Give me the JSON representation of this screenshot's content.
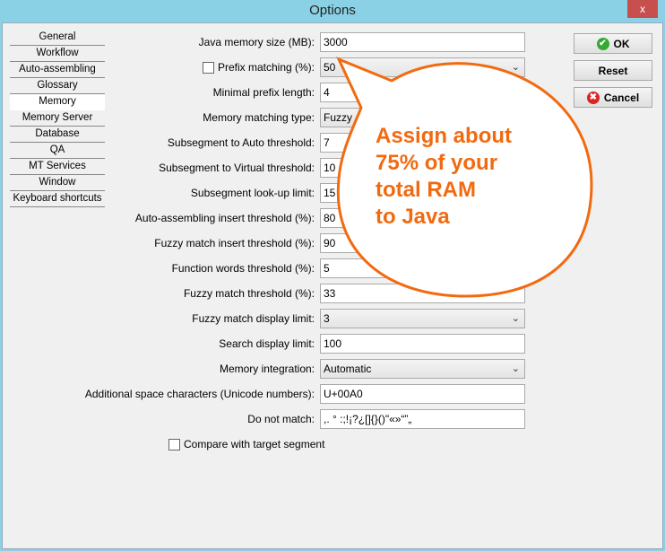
{
  "window": {
    "title": "Options",
    "close": "x"
  },
  "nav": [
    "General",
    "Workflow",
    "Auto-assembling",
    "Glossary",
    "Memory",
    "Memory Server",
    "Database",
    "QA",
    "MT Services",
    "Window",
    "Keyboard shortcuts"
  ],
  "nav_selected": "Memory",
  "fields": [
    {
      "label": "Java memory size (MB):",
      "value": "3000",
      "type": "text"
    },
    {
      "label": "Prefix matching (%):",
      "value": "50",
      "type": "dropdown",
      "checkbox": true,
      "checked": false
    },
    {
      "label": "Minimal prefix length:",
      "value": "4",
      "type": "text"
    },
    {
      "label": "Memory matching type:",
      "value": "Fuzzy &",
      "type": "dropdown"
    },
    {
      "label": "Subsegment to Auto threshold:",
      "value": "7",
      "type": "text"
    },
    {
      "label": "Subsegment to Virtual threshold:",
      "value": "10",
      "type": "text"
    },
    {
      "label": "Subsegment look-up limit:",
      "value": "15",
      "type": "text"
    },
    {
      "label": "Auto-assembling insert threshold (%):",
      "value": "80",
      "type": "text"
    },
    {
      "label": "Fuzzy match insert threshold (%):",
      "value": "90",
      "type": "text"
    },
    {
      "label": "Function words threshold (%):",
      "value": "5",
      "type": "text"
    },
    {
      "label": "Fuzzy match threshold (%):",
      "value": "33",
      "type": "text"
    },
    {
      "label": "Fuzzy match display limit:",
      "value": "3",
      "type": "dropdown"
    },
    {
      "label": "Search display limit:",
      "value": "100",
      "type": "text"
    },
    {
      "label": "Memory integration:",
      "value": "Automatic",
      "type": "dropdown"
    },
    {
      "label": "Additional space characters (Unicode numbers):",
      "value": "U+00A0",
      "type": "text"
    },
    {
      "label": "Do not match:",
      "value": ",. ° :;!¡?¿[]{}()\"«»“”„",
      "type": "text"
    }
  ],
  "compare": {
    "label": "Compare with target segment",
    "checked": false
  },
  "buttons": {
    "ok": "OK",
    "reset": "Reset",
    "cancel": "Cancel"
  },
  "callout": {
    "text": "Assign about\n75% of your\ntotal RAM\nto Java",
    "color": "#f26a10"
  }
}
